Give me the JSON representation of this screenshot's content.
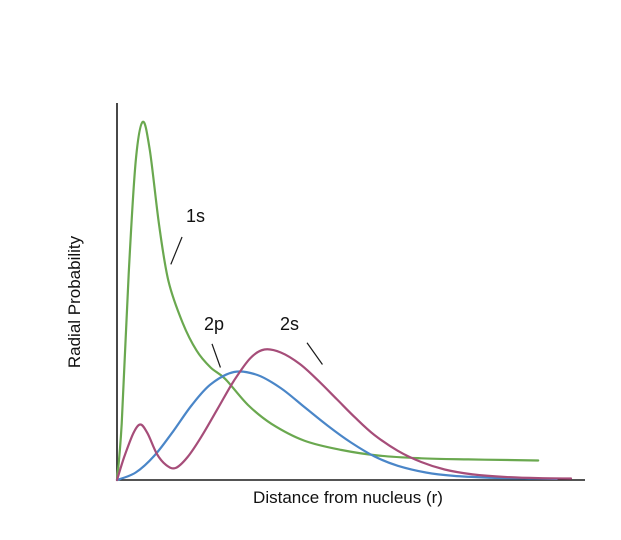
{
  "chart_data": {
    "type": "line",
    "title": "",
    "xlabel": "Distance from nucleus (r)",
    "ylabel": "Radial Probability",
    "xlim": [
      0,
      1
    ],
    "ylim": [
      0,
      1
    ],
    "grid": false,
    "legend_position": "none (curves labeled inline)",
    "axis_color": "#1a1a1a",
    "background": "#ffffff",
    "series": [
      {
        "name": "1s",
        "color": "#6aa84f",
        "points": [
          [
            0.0,
            0.0
          ],
          [
            0.01,
            0.15
          ],
          [
            0.025,
            0.55
          ],
          [
            0.04,
            0.85
          ],
          [
            0.055,
            0.955
          ],
          [
            0.07,
            0.88
          ],
          [
            0.09,
            0.68
          ],
          [
            0.11,
            0.53
          ],
          [
            0.14,
            0.42
          ],
          [
            0.17,
            0.345
          ],
          [
            0.2,
            0.3
          ],
          [
            0.231,
            0.27
          ],
          [
            0.28,
            0.2
          ],
          [
            0.33,
            0.15
          ],
          [
            0.4,
            0.105
          ],
          [
            0.48,
            0.08
          ],
          [
            0.56,
            0.065
          ],
          [
            0.65,
            0.058
          ],
          [
            0.75,
            0.055
          ],
          [
            0.85,
            0.053
          ],
          [
            0.9,
            0.052
          ]
        ]
      },
      {
        "name": "2p",
        "color": "#4a86c8",
        "points": [
          [
            0.0,
            0.0
          ],
          [
            0.04,
            0.02
          ],
          [
            0.08,
            0.065
          ],
          [
            0.12,
            0.13
          ],
          [
            0.16,
            0.2
          ],
          [
            0.2,
            0.255
          ],
          [
            0.25,
            0.288
          ],
          [
            0.3,
            0.28
          ],
          [
            0.35,
            0.245
          ],
          [
            0.4,
            0.195
          ],
          [
            0.45,
            0.145
          ],
          [
            0.5,
            0.1
          ],
          [
            0.55,
            0.063
          ],
          [
            0.6,
            0.038
          ],
          [
            0.66,
            0.02
          ],
          [
            0.72,
            0.011
          ],
          [
            0.8,
            0.006
          ],
          [
            0.88,
            0.004
          ],
          [
            0.94,
            0.003
          ]
        ]
      },
      {
        "name": "2s",
        "color": "#a64d79",
        "points": [
          [
            0.0,
            0.0
          ],
          [
            0.015,
            0.06
          ],
          [
            0.035,
            0.125
          ],
          [
            0.05,
            0.148
          ],
          [
            0.065,
            0.125
          ],
          [
            0.085,
            0.07
          ],
          [
            0.105,
            0.04
          ],
          [
            0.125,
            0.032
          ],
          [
            0.15,
            0.06
          ],
          [
            0.18,
            0.115
          ],
          [
            0.215,
            0.19
          ],
          [
            0.25,
            0.265
          ],
          [
            0.285,
            0.325
          ],
          [
            0.315,
            0.348
          ],
          [
            0.35,
            0.34
          ],
          [
            0.39,
            0.31
          ],
          [
            0.43,
            0.265
          ],
          [
            0.47,
            0.215
          ],
          [
            0.51,
            0.165
          ],
          [
            0.55,
            0.12
          ],
          [
            0.6,
            0.078
          ],
          [
            0.65,
            0.048
          ],
          [
            0.7,
            0.028
          ],
          [
            0.76,
            0.015
          ],
          [
            0.83,
            0.008
          ],
          [
            0.9,
            0.005
          ],
          [
            0.97,
            0.004
          ]
        ]
      }
    ],
    "annotations": [
      {
        "label": "1s",
        "series": "1s",
        "leader_line": [
          [
            0.139,
            0.648
          ],
          [
            0.115,
            0.575
          ]
        ]
      },
      {
        "label": "2p",
        "series": "2p",
        "leader_line": [
          [
            0.203,
            0.363
          ],
          [
            0.221,
            0.3
          ]
        ]
      },
      {
        "label": "2s",
        "series": "2s",
        "leader_line": [
          [
            0.406,
            0.366
          ],
          [
            0.439,
            0.308
          ]
        ]
      }
    ]
  }
}
